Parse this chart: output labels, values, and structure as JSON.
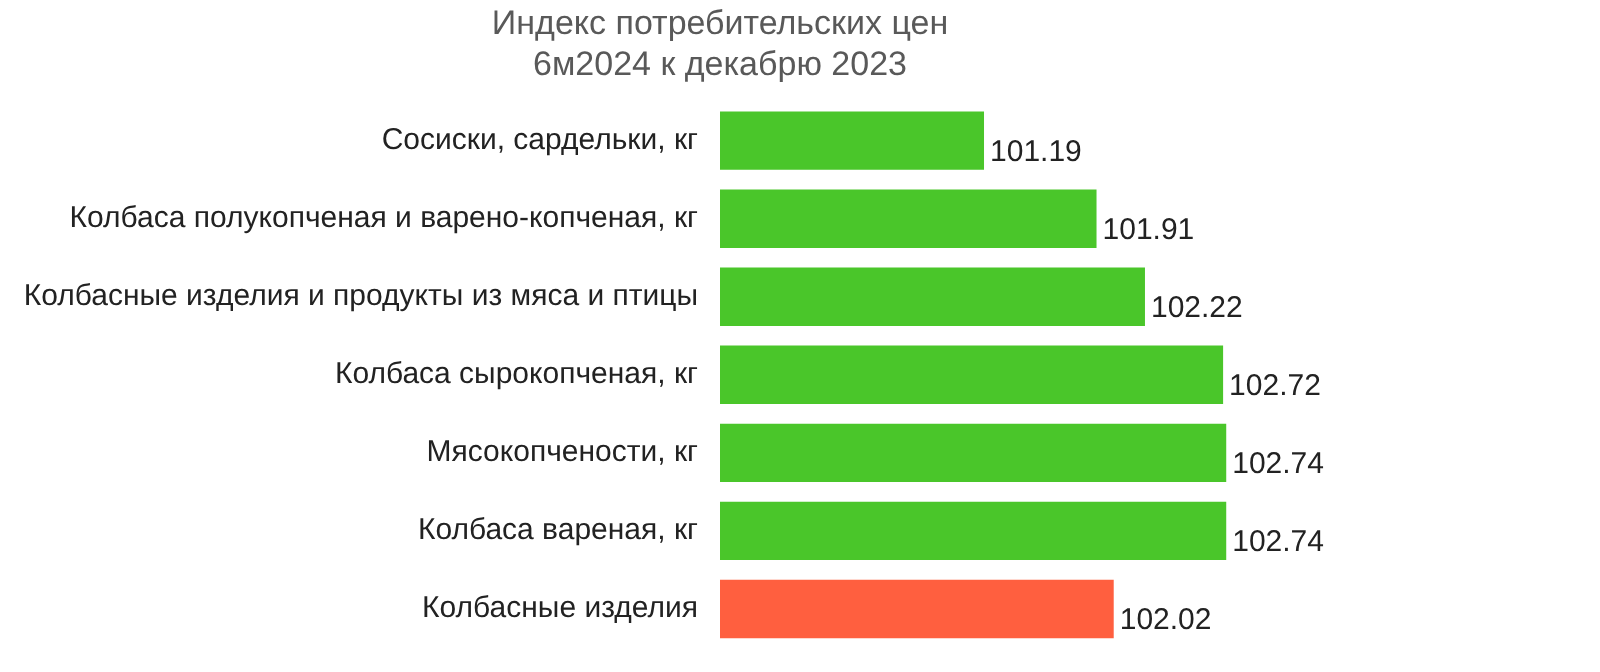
{
  "chart_data": {
    "type": "bar",
    "orientation": "horizontal",
    "title": "Индекс потребительских цен\n6м2024 к декабрю 2023",
    "categories": [
      "Сосиски, сардельки, кг",
      "Колбаса полукопченая и варено-копченая, кг",
      "Колбасные изделия и продукты из мяса и птицы",
      "Колбаса сырокопченая, кг",
      "Мясокопчености, кг",
      "Колбаса вареная, кг",
      "Колбасные изделия"
    ],
    "values": [
      101.19,
      101.91,
      102.22,
      102.72,
      102.74,
      102.74,
      102.02
    ],
    "colors": [
      "#4ac62a",
      "#4ac62a",
      "#4ac62a",
      "#4ac62a",
      "#4ac62a",
      "#4ac62a",
      "#ff5f3f"
    ],
    "tick_labels": "y",
    "grid": false,
    "legend": false,
    "data_labels": true
  }
}
